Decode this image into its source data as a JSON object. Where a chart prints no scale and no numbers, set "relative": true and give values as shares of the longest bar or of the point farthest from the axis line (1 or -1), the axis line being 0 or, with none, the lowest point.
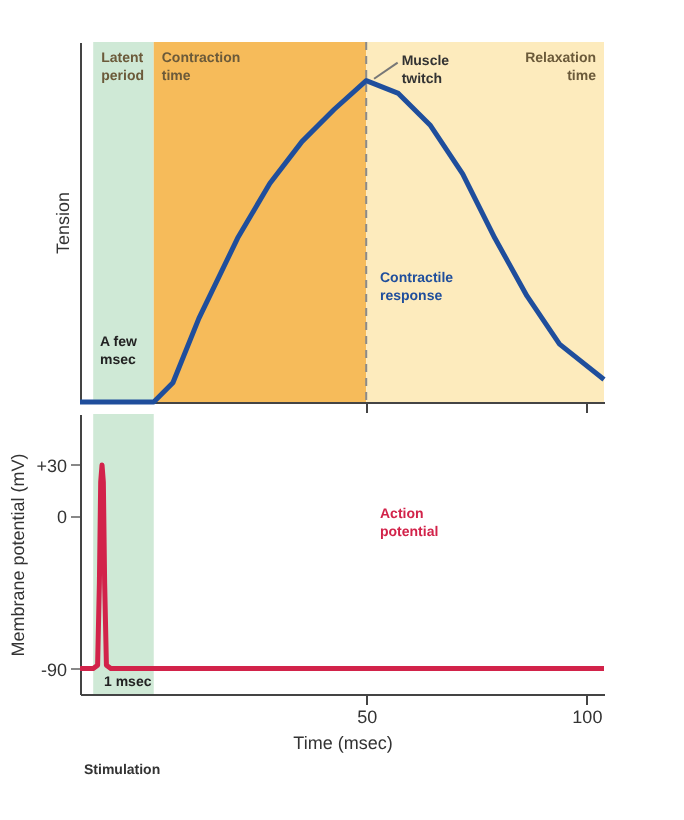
{
  "chart_data": [
    {
      "type": "line",
      "relative": true,
      "ylabel": "Tension",
      "xlim": [
        -15,
        104
      ],
      "xticks": [
        {
          "value": 50,
          "label": null
        },
        {
          "value": 100,
          "label": null
        }
      ],
      "tick_labels": false,
      "grid": false,
      "line_style": "solid",
      "x": [
        -15,
        1.75,
        6.1,
        12.0,
        20.8,
        28.1,
        35.4,
        42.7,
        50,
        57.3,
        64.6,
        71.9,
        79.2,
        86.5,
        93.9,
        104
      ],
      "series": [
        {
          "color": "#1f4e9c",
          "values": [
            0,
            0,
            0.06,
            0.26,
            0.51,
            0.68,
            0.81,
            0.91,
            1.0,
            0.96,
            0.86,
            0.71,
            0.51,
            0.33,
            0.18,
            0.07
          ]
        }
      ],
      "bands": [
        {
          "axis": "x",
          "from": -12,
          "to": 1.75,
          "label": "Latent period",
          "color": "#cfe9d6"
        },
        {
          "axis": "x",
          "from": 1.75,
          "to": 50,
          "label": "Contraction time",
          "color": "#f6bb5a"
        },
        {
          "axis": "x",
          "from": 50,
          "to": 104,
          "label": "Relaxation time",
          "color": "#fdebbd"
        }
      ],
      "ref_lines": [
        {
          "axis": "x",
          "value": 50,
          "color": "#8a8a8a",
          "line_style": "dashed"
        }
      ],
      "annotations": [
        {
          "text": "Muscle twitch",
          "x": 50,
          "y": 1
        },
        "Contractile response",
        "A few msec"
      ]
    },
    {
      "type": "line",
      "ylabel": "Membrane potential (mV)",
      "xlabel": "Time (msec)",
      "xlim": [
        -15,
        104
      ],
      "xticks": [
        50,
        100
      ],
      "ylim": [
        -105,
        60
      ],
      "yticks": [
        {
          "value": 30,
          "label": "+30"
        },
        0,
        -90
      ],
      "grid": false,
      "line_style": "solid",
      "x": [
        -15,
        -12,
        -11,
        -10.6,
        -10.3,
        -10,
        -9.7,
        -9.4,
        -9,
        -8,
        104
      ],
      "series": [
        {
          "color": "#d2234a",
          "values": [
            -90,
            -90,
            -88,
            -40,
            20,
            30,
            20,
            -40,
            -88,
            -90,
            -90
          ]
        }
      ],
      "bands": [
        {
          "axis": "x",
          "from": -12,
          "to": 1.75,
          "color": "#cfe9d6"
        }
      ],
      "annotations": [
        "Action potential",
        "1 msec",
        "Stimulation"
      ]
    }
  ]
}
